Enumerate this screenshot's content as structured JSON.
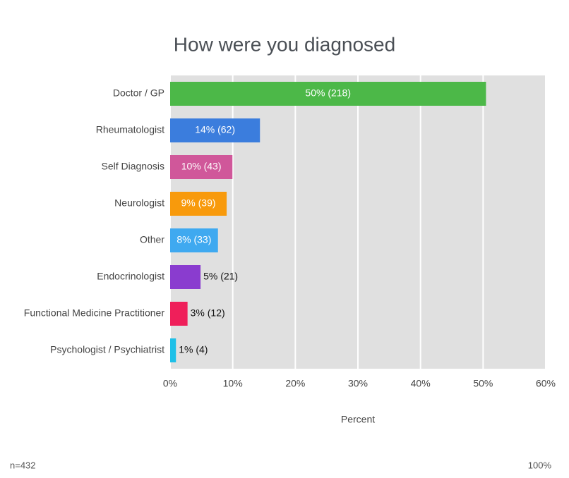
{
  "chart_data": {
    "type": "bar",
    "orientation": "horizontal",
    "title": "How were you diagnosed",
    "x_label": "Percent",
    "note_left": "n=432",
    "note_right": "100%",
    "categories": [
      "Doctor / GP",
      "Rheumatologist",
      "Self Diagnosis",
      "Neurologist",
      "Other",
      "Endocrinologist",
      "Functional Medicine Practitioner",
      "Psychologist / Psychiatrist"
    ],
    "values": [
      50.46,
      14.35,
      9.95,
      9.03,
      7.64,
      4.86,
      2.78,
      0.93
    ],
    "value_labels": [
      "50% (218)",
      "14% (62)",
      "10% (43)",
      "9% (39)",
      "8% (33)",
      "5% (21)",
      "3% (12)",
      "1% (4)"
    ],
    "colors": [
      "#4cb848",
      "#3b7ddd",
      "#d0579a",
      "#f89a0c",
      "#3fa9f0",
      "#8a3ccf",
      "#ef1f5a",
      "#1ec0e8"
    ],
    "xlim": [
      0,
      60
    ],
    "xticks": [
      {
        "value": 0,
        "label": "0%"
      },
      {
        "value": 10,
        "label": "10%"
      },
      {
        "value": 20,
        "label": "20%"
      },
      {
        "value": 30,
        "label": "30%"
      },
      {
        "value": 40,
        "label": "40%"
      },
      {
        "value": 50,
        "label": "50%"
      },
      {
        "value": 60,
        "label": "60%"
      }
    ],
    "grid": true
  }
}
